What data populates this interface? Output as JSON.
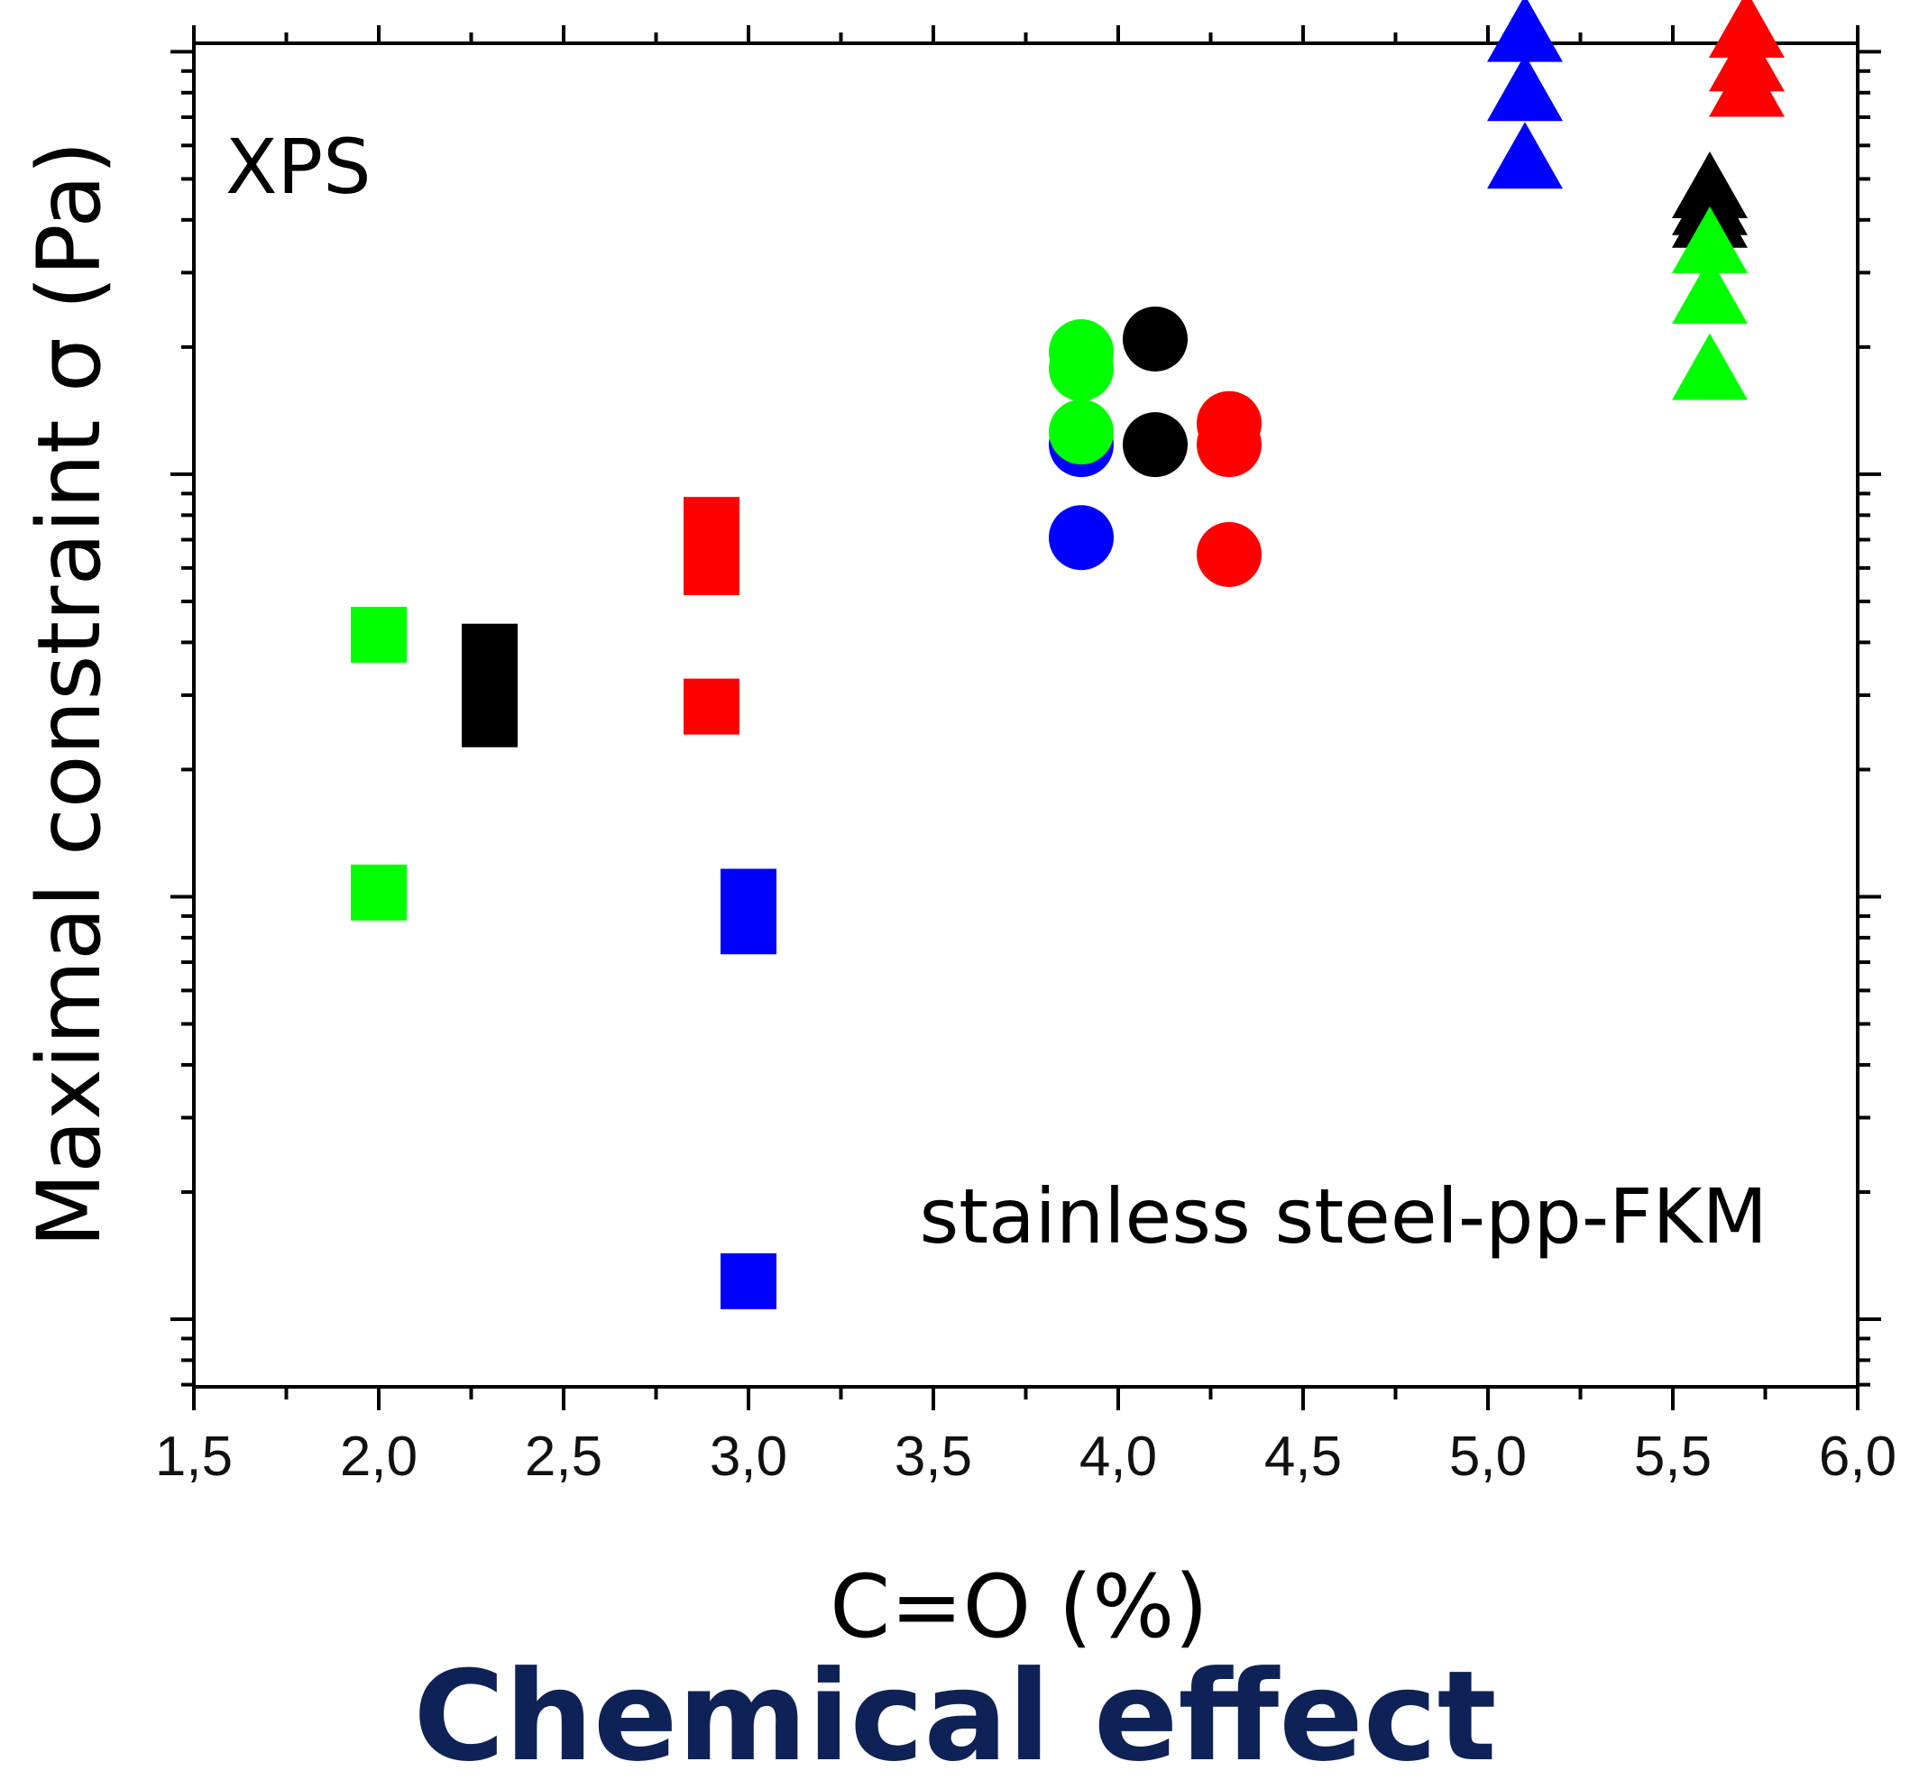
{
  "caption": "Chemical effect",
  "colors": {
    "black": "#000000",
    "red": "#ff0000",
    "green": "#00ff00",
    "blue": "#0000ff",
    "caption": "#0f2257"
  },
  "chart_data": {
    "type": "scatter",
    "title": "",
    "xlabel": "C=O (%)",
    "ylabel": "Maximal constraint σ (Pa)",
    "xlim": [
      1.5,
      6.0
    ],
    "x_ticks": [
      "1,5",
      "2,0",
      "2,5",
      "3,0",
      "3,5",
      "4,0",
      "4,5",
      "5,0",
      "5,5",
      "6,0"
    ],
    "x_tick_values": [
      1.5,
      2.0,
      2.5,
      3.0,
      3.5,
      4.0,
      4.5,
      5.0,
      5.5,
      6.0
    ],
    "y_scale": "log",
    "y_tick_labels_shown": false,
    "ylim_decades": [
      -0.16,
      3.02
    ],
    "grid": false,
    "annotations": [
      "XPS",
      "stainless steel-pp-FKM"
    ],
    "series": [
      {
        "marker": "square",
        "color": "green",
        "points": [
          [
            2.0,
            1.62
          ],
          [
            2.0,
            1.01
          ]
        ]
      },
      {
        "marker": "square",
        "color": "black",
        "points": [
          [
            2.3,
            1.58
          ],
          [
            2.3,
            1.52
          ],
          [
            2.3,
            1.46
          ],
          [
            2.3,
            1.42
          ]
        ]
      },
      {
        "marker": "square",
        "color": "red",
        "points": [
          [
            2.9,
            1.88
          ],
          [
            2.9,
            1.78
          ],
          [
            2.9,
            1.45
          ]
        ]
      },
      {
        "marker": "square",
        "color": "blue",
        "points": [
          [
            3.0,
            1.0
          ],
          [
            3.0,
            0.93
          ],
          [
            3.0,
            0.09
          ]
        ]
      },
      {
        "marker": "circle",
        "color": "blue",
        "points": [
          [
            3.9,
            2.07
          ],
          [
            3.9,
            1.85
          ]
        ]
      },
      {
        "marker": "circle",
        "color": "green",
        "points": [
          [
            3.9,
            2.29
          ],
          [
            3.9,
            2.25
          ],
          [
            3.9,
            2.1
          ]
        ]
      },
      {
        "marker": "circle",
        "color": "black",
        "points": [
          [
            4.1,
            2.32
          ],
          [
            4.1,
            2.07
          ]
        ]
      },
      {
        "marker": "circle",
        "color": "red",
        "points": [
          [
            4.3,
            2.12
          ],
          [
            4.3,
            2.07
          ],
          [
            4.3,
            1.81
          ]
        ]
      },
      {
        "marker": "triangle",
        "color": "blue",
        "points": [
          [
            5.1,
            3.04
          ],
          [
            5.1,
            2.9
          ],
          [
            5.1,
            2.74
          ]
        ]
      },
      {
        "marker": "triangle",
        "color": "red",
        "points": [
          [
            5.7,
            3.05
          ],
          [
            5.7,
            2.97
          ],
          [
            5.7,
            2.91
          ]
        ]
      },
      {
        "marker": "triangle",
        "color": "black",
        "points": [
          [
            5.6,
            2.67
          ],
          [
            5.6,
            2.63
          ],
          [
            5.6,
            2.6
          ]
        ]
      },
      {
        "marker": "triangle",
        "color": "green",
        "points": [
          [
            5.6,
            2.54
          ],
          [
            5.6,
            2.42
          ],
          [
            5.6,
            2.24
          ]
        ]
      }
    ]
  }
}
